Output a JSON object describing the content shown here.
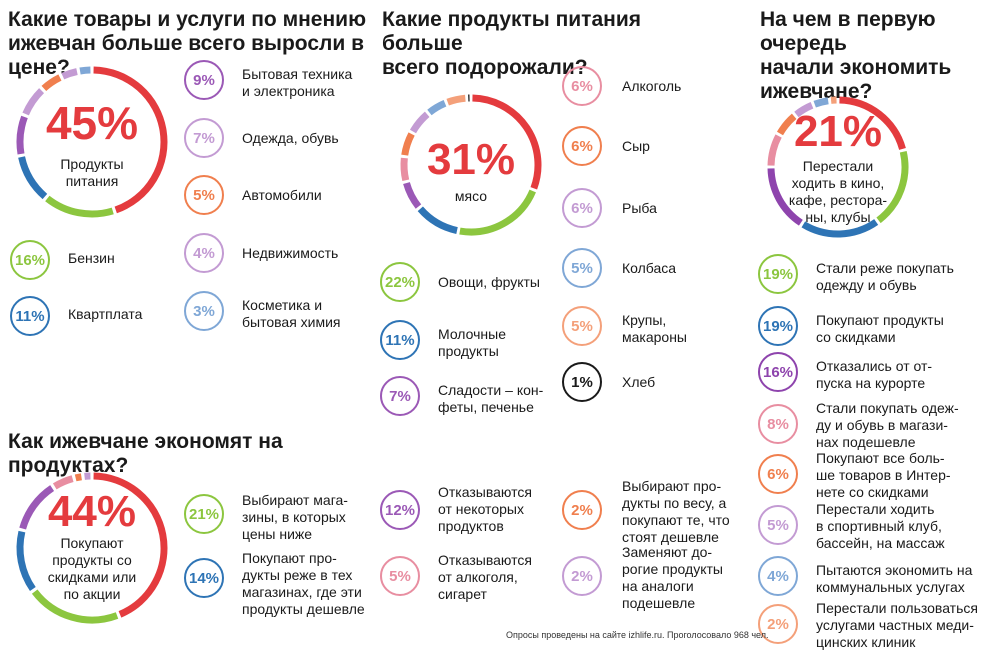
{
  "colors": {
    "red": "#e43b3e",
    "green": "#8cc63f",
    "blue": "#2e74b5",
    "purple": "#9b59b6",
    "lavender": "#c39bd3",
    "orange": "#f07f4e",
    "pink": "#e88ea1",
    "lightblue": "#7fa7d6",
    "violet": "#8e44ad",
    "salmon": "#f4a07a",
    "black": "#1a1a1a"
  },
  "sections": {
    "goods": {
      "title": "Какие товары и услуги по мнению\nижевчан больше всего выросли в цене?",
      "main_pct": "45%",
      "main_label": "Продукты\nпитания"
    },
    "food": {
      "title": "Какие продукты питания больше\nвсего подорожали?",
      "main_pct": "31%",
      "main_label": "мясо"
    },
    "economy": {
      "title": "На чем в первую очередь\nначали экономить\nижевчане?",
      "main_pct": "21%",
      "main_label": "Перестали\nходить в кино,\nкафе, рестора-\nны, клубы"
    },
    "saving": {
      "title": "Как ижевчане экономят на продуктах?",
      "main_pct": "44%",
      "main_label": "Покупают\nпродукты со\nскидками или\nпо акции"
    }
  },
  "footnote": "Опросы проведены на сайте izhlife.ru. Проголосовало 968 чел.",
  "chart_data": [
    {
      "type": "pie",
      "title": "Какие товары и услуги по мнению ижевчан больше всего выросли в цене?",
      "categories": [
        "Продукты питания",
        "Бензин",
        "Квартплата",
        "Бытовая техника и электроника",
        "Одежда, обувь",
        "Автомобили",
        "Недвижимость",
        "Косметика и бытовая химия"
      ],
      "values": [
        45,
        16,
        11,
        9,
        7,
        5,
        4,
        3
      ],
      "items": [
        {
          "pct": "16%",
          "label": "Бензин",
          "color": "#8cc63f"
        },
        {
          "pct": "11%",
          "label": "Квартплата",
          "color": "#2e74b5"
        },
        {
          "pct": "9%",
          "label": "Бытовая техника\nи электроника",
          "color": "#9b59b6"
        },
        {
          "pct": "7%",
          "label": "Одежда, обувь",
          "color": "#c39bd3"
        },
        {
          "pct": "5%",
          "label": "Автомобили",
          "color": "#f07f4e"
        },
        {
          "pct": "4%",
          "label": "Недвижимость",
          "color": "#c39bd3"
        },
        {
          "pct": "3%",
          "label": "Косметика и\nбытовая химия",
          "color": "#7fa7d6"
        }
      ]
    },
    {
      "type": "pie",
      "title": "Какие продукты питания больше всего подорожали?",
      "categories": [
        "мясо",
        "Овощи, фрукты",
        "Молочные продукты",
        "Сладости – конфеты, печенье",
        "Алкоголь",
        "Сыр",
        "Рыба",
        "Колбаса",
        "Крупы, макароны",
        "Хлеб"
      ],
      "values": [
        31,
        22,
        11,
        7,
        6,
        6,
        6,
        5,
        5,
        1
      ],
      "items": [
        {
          "pct": "22%",
          "label": "Овощи, фрукты",
          "color": "#8cc63f"
        },
        {
          "pct": "11%",
          "label": "Молочные\nпродукты",
          "color": "#2e74b5"
        },
        {
          "pct": "7%",
          "label": "Сладости – кон-\nфеты, печенье",
          "color": "#9b59b6"
        },
        {
          "pct": "6%",
          "label": "Алкоголь",
          "color": "#e88ea1"
        },
        {
          "pct": "6%",
          "label": "Сыр",
          "color": "#f07f4e"
        },
        {
          "pct": "6%",
          "label": "Рыба",
          "color": "#c39bd3"
        },
        {
          "pct": "5%",
          "label": "Колбаса",
          "color": "#7fa7d6"
        },
        {
          "pct": "5%",
          "label": "Крупы,\nмакароны",
          "color": "#f4a07a"
        },
        {
          "pct": "1%",
          "label": "Хлеб",
          "color": "#1a1a1a"
        }
      ]
    },
    {
      "type": "pie",
      "title": "На чем в первую очередь начали экономить ижевчане?",
      "categories": [
        "Перестали ходить в кино, кафе, рестораны, клубы",
        "Стали реже покупать одежду и обувь",
        "Покупают продукты со скидками",
        "Отказались от отпуска на курорте",
        "Стали покупать одежду и обувь в магазинах подешевле",
        "Покупают все больше товаров в Интернете со скидками",
        "Перестали ходить в спортивный клуб, бассейн, на массаж",
        "Пытаются экономить на коммунальных услугах",
        "Перестали пользоваться услугами частных медицинских клиник"
      ],
      "values": [
        21,
        19,
        19,
        16,
        8,
        6,
        5,
        4,
        2
      ],
      "items": [
        {
          "pct": "19%",
          "label": "Стали реже покупать\nодежду и обувь",
          "color": "#8cc63f"
        },
        {
          "pct": "19%",
          "label": "Покупают продукты\nсо скидками",
          "color": "#2e74b5"
        },
        {
          "pct": "16%",
          "label": "Отказались от от-\nпуска на курорте",
          "color": "#8e44ad"
        },
        {
          "pct": "8%",
          "label": "Стали покупать одеж-\nду и обувь в магази-\nнах подешевле",
          "color": "#e88ea1"
        },
        {
          "pct": "6%",
          "label": "Покупают все боль-\nше товаров в Интер-\nнете со скидками",
          "color": "#f07f4e"
        },
        {
          "pct": "5%",
          "label": "Перестали ходить\nв спортивный клуб,\nбассейн, на массаж",
          "color": "#c39bd3"
        },
        {
          "pct": "4%",
          "label": "Пытаются экономить на\nкоммунальных услугах",
          "color": "#7fa7d6"
        },
        {
          "pct": "2%",
          "label": "Перестали пользоваться\nуслугами частных меди-\nцинских клиник",
          "color": "#f4a07a"
        }
      ]
    },
    {
      "type": "pie",
      "title": "Как ижевчане экономят на продуктах?",
      "categories": [
        "Покупают продукты со скидками или по акции",
        "Выбирают магазины, в которых цены ниже",
        "Покупают продукты реже в тех магазинах, где эти продукты дешевле",
        "Отказываются от некоторых продуктов",
        "Отказываются от алкоголя, сигарет",
        "Выбирают продукты по весу, а покупают те, что стоят дешевле",
        "Заменяют дорогие продукты на аналоги подешевле"
      ],
      "values": [
        44,
        21,
        14,
        12,
        5,
        2,
        2
      ],
      "items": [
        {
          "pct": "21%",
          "label": "Выбирают мага-\nзины, в которых\nцены ниже",
          "color": "#8cc63f"
        },
        {
          "pct": "14%",
          "label": "Покупают про-\nдукты реже в тех\nмагазинах, где эти\nпродукты дешевле",
          "color": "#2e74b5"
        },
        {
          "pct": "12%",
          "label": "Отказываются\nот некоторых\nпродуктов",
          "color": "#9b59b6"
        },
        {
          "pct": "5%",
          "label": "Отказываются\nот алкоголя,\nсигарет",
          "color": "#e88ea1"
        },
        {
          "pct": "2%",
          "label": "Выбирают про-\nдукты по весу, а\nпокупают те, что\nстоят дешевле",
          "color": "#f07f4e"
        },
        {
          "pct": "2%",
          "label": "Заменяют до-\nрогие продукты\nна аналоги\nподешевле",
          "color": "#c39bd3"
        }
      ]
    }
  ]
}
